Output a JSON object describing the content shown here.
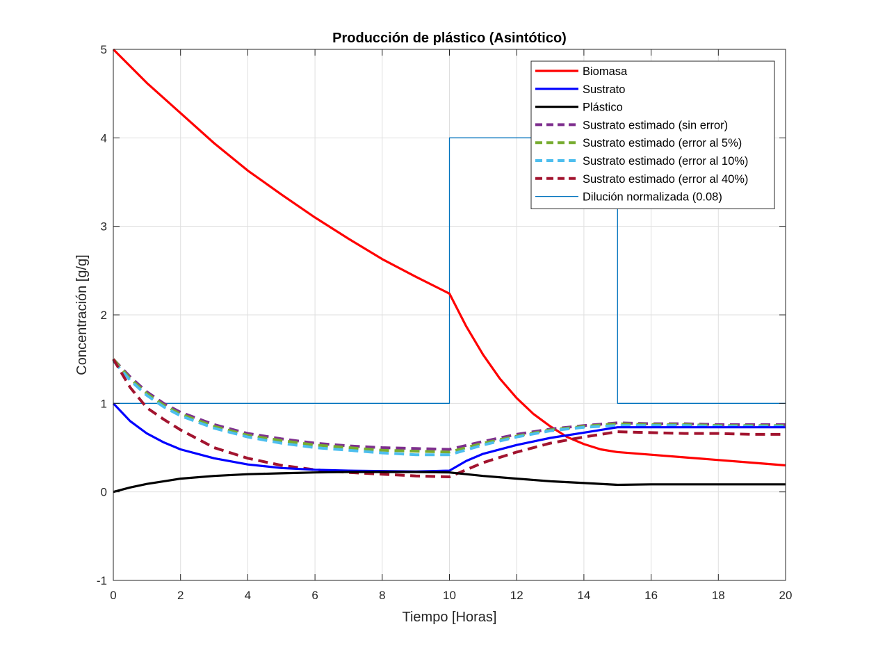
{
  "chart_data": {
    "type": "line",
    "title": "Producción de plástico (Asintótico)",
    "xlabel": "Tiempo [Horas]",
    "ylabel": "Concentración [g/g]",
    "xlim": [
      0,
      20
    ],
    "ylim": [
      -1,
      5
    ],
    "xticks": [
      0,
      2,
      4,
      6,
      8,
      10,
      12,
      14,
      16,
      18,
      20
    ],
    "yticks": [
      -1,
      0,
      1,
      2,
      3,
      4,
      5
    ],
    "xtick_labels": [
      "0",
      "2",
      "4",
      "6",
      "8",
      "10",
      "12",
      "14",
      "16",
      "18",
      "20"
    ],
    "ytick_labels": [
      "-1",
      "0",
      "1",
      "2",
      "3",
      "4",
      "5"
    ],
    "grid": true,
    "legend_position": "top-right",
    "series": [
      {
        "name": "Biomasa",
        "color": "#ff0000",
        "style": "solid",
        "x": [
          0,
          1,
          2,
          3,
          4,
          5,
          6,
          7,
          8,
          9,
          10,
          10.5,
          11,
          11.5,
          12,
          12.5,
          13,
          13.5,
          14,
          14.5,
          15,
          16,
          17,
          18,
          19,
          20
        ],
        "y": [
          5.0,
          4.62,
          4.28,
          3.94,
          3.63,
          3.36,
          3.1,
          2.86,
          2.63,
          2.43,
          2.24,
          1.87,
          1.55,
          1.28,
          1.06,
          0.88,
          0.74,
          0.62,
          0.54,
          0.48,
          0.45,
          0.42,
          0.39,
          0.36,
          0.33,
          0.3
        ]
      },
      {
        "name": "Sustrato",
        "color": "#0000ff",
        "style": "solid",
        "x": [
          0,
          0.5,
          1,
          1.5,
          2,
          3,
          4,
          5,
          6,
          7,
          8,
          9,
          10,
          10.5,
          11,
          12,
          13,
          14,
          15,
          16,
          17,
          18,
          19,
          20
        ],
        "y": [
          1.0,
          0.8,
          0.66,
          0.56,
          0.48,
          0.38,
          0.31,
          0.27,
          0.25,
          0.24,
          0.235,
          0.23,
          0.24,
          0.35,
          0.43,
          0.53,
          0.61,
          0.67,
          0.73,
          0.73,
          0.73,
          0.73,
          0.73,
          0.73
        ]
      },
      {
        "name": "Plástico",
        "color": "#000000",
        "style": "solid",
        "x": [
          0,
          0.5,
          1,
          1.5,
          2,
          3,
          4,
          5,
          6,
          7,
          8,
          9,
          10,
          11,
          12,
          13,
          14,
          15,
          16,
          17,
          18,
          19,
          20
        ],
        "y": [
          0.0,
          0.05,
          0.09,
          0.12,
          0.15,
          0.18,
          0.2,
          0.21,
          0.22,
          0.225,
          0.225,
          0.225,
          0.22,
          0.18,
          0.15,
          0.12,
          0.1,
          0.08,
          0.085,
          0.085,
          0.085,
          0.085,
          0.085
        ]
      },
      {
        "name": "Sustrato estimado (sin error)",
        "color": "#7e2f8e",
        "style": "dashed",
        "x": [
          0,
          0.5,
          1,
          1.5,
          2,
          3,
          4,
          5,
          6,
          7,
          8,
          9,
          10,
          11,
          12,
          13,
          14,
          15,
          16,
          17,
          18,
          19,
          20
        ],
        "y": [
          1.5,
          1.3,
          1.13,
          1.0,
          0.9,
          0.76,
          0.66,
          0.6,
          0.55,
          0.52,
          0.5,
          0.49,
          0.48,
          0.57,
          0.65,
          0.71,
          0.75,
          0.78,
          0.77,
          0.77,
          0.76,
          0.76,
          0.76
        ]
      },
      {
        "name": "Sustrato estimado (error al 5%)",
        "color": "#77ac30",
        "style": "dashed",
        "x": [
          0,
          0.5,
          1,
          1.5,
          2,
          3,
          4,
          5,
          6,
          7,
          8,
          9,
          10,
          11,
          12,
          13,
          14,
          15,
          16,
          17,
          18,
          19,
          20
        ],
        "y": [
          1.5,
          1.28,
          1.11,
          0.98,
          0.88,
          0.74,
          0.64,
          0.58,
          0.53,
          0.5,
          0.47,
          0.46,
          0.45,
          0.55,
          0.63,
          0.7,
          0.74,
          0.77,
          0.76,
          0.76,
          0.75,
          0.75,
          0.75
        ]
      },
      {
        "name": "Sustrato estimado (error al 10%)",
        "color": "#4dbeee",
        "style": "dashed",
        "x": [
          0,
          0.5,
          1,
          1.5,
          2,
          3,
          4,
          5,
          6,
          7,
          8,
          9,
          10,
          11,
          12,
          13,
          14,
          15,
          16,
          17,
          18,
          19,
          20
        ],
        "y": [
          1.48,
          1.26,
          1.09,
          0.96,
          0.86,
          0.72,
          0.62,
          0.55,
          0.5,
          0.47,
          0.44,
          0.42,
          0.42,
          0.53,
          0.62,
          0.69,
          0.73,
          0.75,
          0.75,
          0.75,
          0.74,
          0.74,
          0.74
        ]
      },
      {
        "name": "Sustrato estimado (error al 40%)",
        "color": "#a2142f",
        "style": "dashed",
        "x": [
          0,
          0.5,
          1,
          1.5,
          2,
          3,
          4,
          5,
          6,
          7,
          8,
          9,
          10,
          11,
          12,
          13,
          14,
          15,
          16,
          17,
          18,
          19,
          20
        ],
        "y": [
          1.5,
          1.18,
          0.95,
          0.82,
          0.7,
          0.5,
          0.38,
          0.3,
          0.25,
          0.22,
          0.2,
          0.18,
          0.17,
          0.33,
          0.45,
          0.55,
          0.62,
          0.68,
          0.67,
          0.66,
          0.66,
          0.65,
          0.65
        ]
      },
      {
        "name": "Dilución normalizada (0.08)",
        "color": "#0072bd",
        "style": "thin",
        "x": [
          0,
          10,
          10,
          15,
          15,
          20
        ],
        "y": [
          1,
          1,
          4,
          4,
          1,
          1
        ]
      }
    ]
  }
}
